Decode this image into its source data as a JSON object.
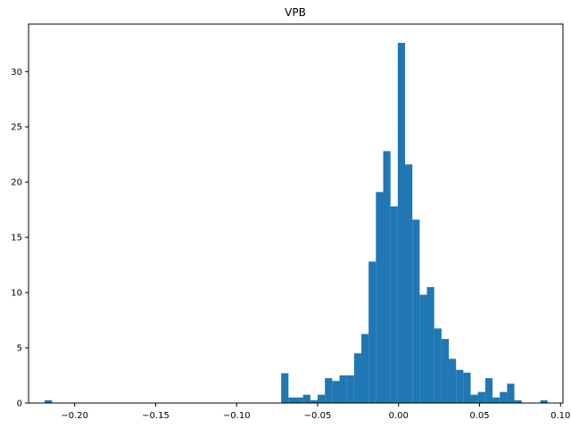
{
  "chart_data": {
    "type": "bar",
    "subtype": "histogram",
    "title": "VPB",
    "xlabel": "",
    "ylabel": "",
    "xlim": [
      -0.2285,
      0.1015
    ],
    "ylim": [
      0,
      34.3
    ],
    "grid": false,
    "bar_color": "#1f77b4",
    "x_ticks": [
      -0.2,
      -0.15,
      -0.1,
      -0.05,
      0.0,
      0.05,
      0.1
    ],
    "x_tick_labels": [
      "−0.20",
      "−0.15",
      "−0.10",
      "−0.05",
      "0.00",
      "0.05",
      "0.10"
    ],
    "y_ticks": [
      0,
      5,
      10,
      15,
      20,
      25,
      30
    ],
    "y_tick_labels": [
      "0",
      "5",
      "10",
      "15",
      "20",
      "25",
      "30"
    ],
    "bins": [
      {
        "x0": -0.2185,
        "x1": -0.214,
        "count": 0.25
      },
      {
        "x0": -0.0725,
        "x1": -0.068,
        "count": 2.7
      },
      {
        "x0": -0.068,
        "x1": -0.0635,
        "count": 0.5
      },
      {
        "x0": -0.0635,
        "x1": -0.059,
        "count": 0.5
      },
      {
        "x0": -0.059,
        "x1": -0.0545,
        "count": 0.75
      },
      {
        "x0": -0.0545,
        "x1": -0.05,
        "count": 0.25
      },
      {
        "x0": -0.05,
        "x1": -0.0455,
        "count": 0.75
      },
      {
        "x0": -0.0455,
        "x1": -0.041,
        "count": 2.25
      },
      {
        "x0": -0.041,
        "x1": -0.0365,
        "count": 2.0
      },
      {
        "x0": -0.0365,
        "x1": -0.032,
        "count": 2.5
      },
      {
        "x0": -0.032,
        "x1": -0.0275,
        "count": 2.5
      },
      {
        "x0": -0.0275,
        "x1": -0.023,
        "count": 4.5
      },
      {
        "x0": -0.023,
        "x1": -0.0185,
        "count": 6.25
      },
      {
        "x0": -0.0185,
        "x1": -0.014,
        "count": 12.8
      },
      {
        "x0": -0.014,
        "x1": -0.0095,
        "count": 19.1
      },
      {
        "x0": -0.0095,
        "x1": -0.005,
        "count": 22.8
      },
      {
        "x0": -0.005,
        "x1": -0.0005,
        "count": 17.8
      },
      {
        "x0": -0.0005,
        "x1": 0.004,
        "count": 32.6
      },
      {
        "x0": 0.004,
        "x1": 0.0085,
        "count": 21.6
      },
      {
        "x0": 0.0085,
        "x1": 0.013,
        "count": 16.6
      },
      {
        "x0": 0.013,
        "x1": 0.0175,
        "count": 9.8
      },
      {
        "x0": 0.0175,
        "x1": 0.022,
        "count": 10.5
      },
      {
        "x0": 0.022,
        "x1": 0.0265,
        "count": 6.75
      },
      {
        "x0": 0.0265,
        "x1": 0.031,
        "count": 5.8
      },
      {
        "x0": 0.031,
        "x1": 0.0355,
        "count": 4.0
      },
      {
        "x0": 0.0355,
        "x1": 0.04,
        "count": 3.0
      },
      {
        "x0": 0.04,
        "x1": 0.0445,
        "count": 2.75
      },
      {
        "x0": 0.0445,
        "x1": 0.049,
        "count": 0.75
      },
      {
        "x0": 0.049,
        "x1": 0.0535,
        "count": 1.0
      },
      {
        "x0": 0.0535,
        "x1": 0.058,
        "count": 2.25
      },
      {
        "x0": 0.058,
        "x1": 0.0625,
        "count": 0.5
      },
      {
        "x0": 0.0625,
        "x1": 0.067,
        "count": 1.0
      },
      {
        "x0": 0.067,
        "x1": 0.0715,
        "count": 1.75
      },
      {
        "x0": 0.0715,
        "x1": 0.076,
        "count": 0.25
      },
      {
        "x0": 0.0875,
        "x1": 0.092,
        "count": 0.25
      }
    ]
  }
}
